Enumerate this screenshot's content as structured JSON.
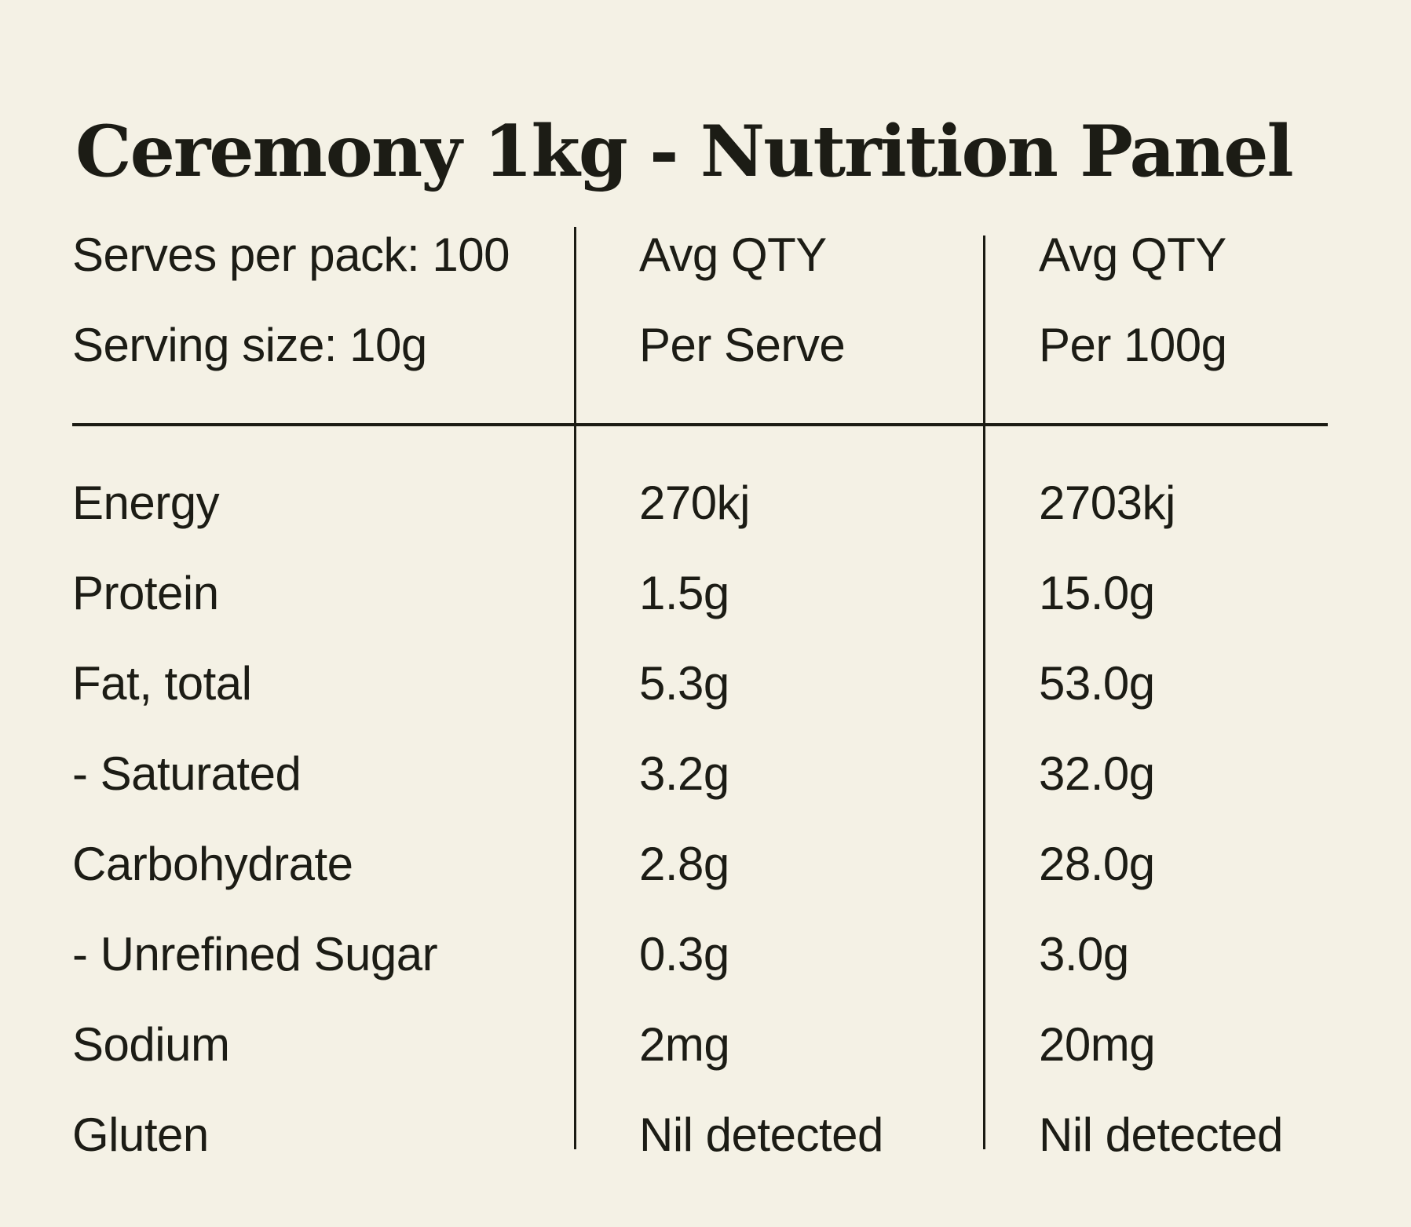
{
  "colors": {
    "background": "#f4f1e5",
    "text": "#1c1c15",
    "rule": "#1b1b13"
  },
  "title": "Ceremony 1kg - Nutrition Panel",
  "table": {
    "header": {
      "serves_per_pack": "Serves per pack: 100",
      "serving_size": "Serving size: 10g",
      "col2_line1": "Avg QTY",
      "col2_line2": "Per Serve",
      "col3_line1": "Avg QTY",
      "col3_line2": "Per 100g"
    },
    "rows": [
      {
        "label": "Energy",
        "per_serve": "270kj",
        "per_100g": "2703kj"
      },
      {
        "label": "Protein",
        "per_serve": "1.5g",
        "per_100g": "15.0g"
      },
      {
        "label": "Fat, total",
        "per_serve": "5.3g",
        "per_100g": "53.0g"
      },
      {
        "label": "- Saturated",
        "per_serve": "3.2g",
        "per_100g": "32.0g"
      },
      {
        "label": "Carbohydrate",
        "per_serve": "2.8g",
        "per_100g": "28.0g"
      },
      {
        "label": "- Unrefined Sugar",
        "per_serve": "0.3g",
        "per_100g": "3.0g"
      },
      {
        "label": "Sodium",
        "per_serve": "2mg",
        "per_100g": "20mg"
      },
      {
        "label": "Gluten",
        "per_serve": "Nil detected",
        "per_100g": "Nil detected"
      }
    ]
  }
}
